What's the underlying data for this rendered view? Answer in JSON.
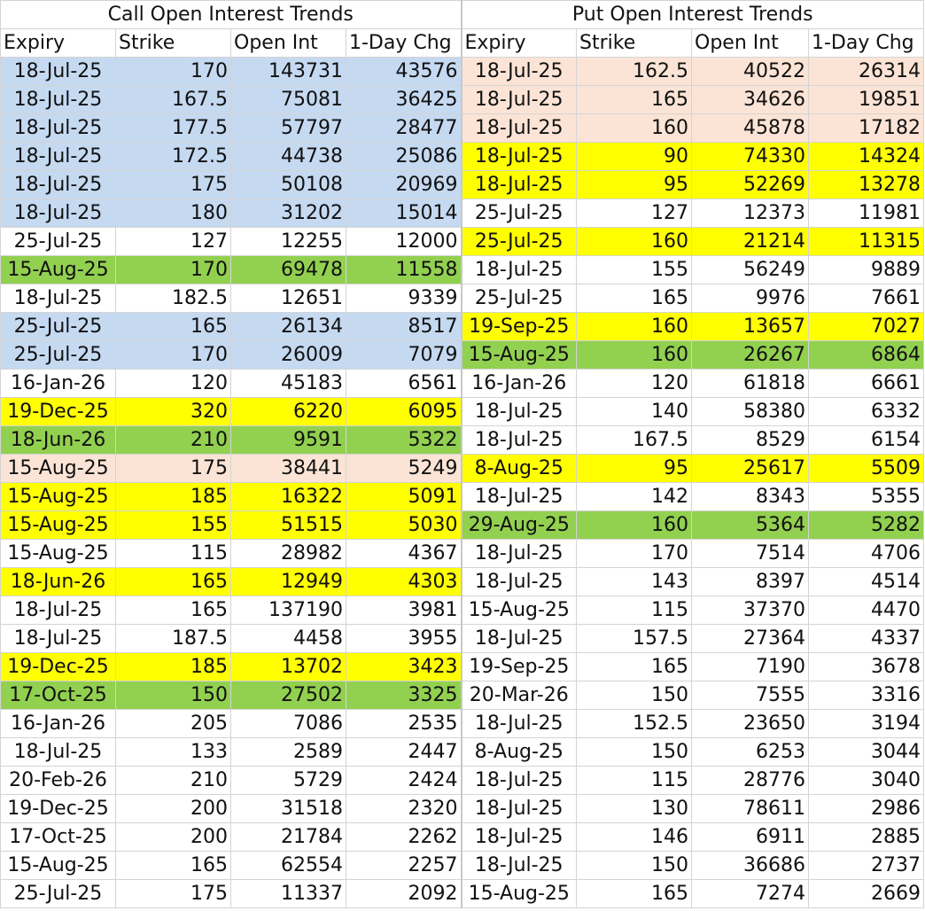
{
  "sections": {
    "call_title": "Call Open Interest Trends",
    "put_title": "Put Open Interest Trends"
  },
  "headers": [
    "Expiry",
    "Strike",
    "Open Int",
    "1-Day Chg"
  ],
  "colors": {
    "blue": "#c5d9f1",
    "green": "#92d050",
    "yellow": "#ffff00",
    "peach": "#fbe4d6",
    "none": "#ffffff"
  },
  "call": [
    {
      "expiry": "18-Jul-25",
      "strike": "170",
      "oi": "143731",
      "chg": "43576",
      "hl": "blue"
    },
    {
      "expiry": "18-Jul-25",
      "strike": "167.5",
      "oi": "75081",
      "chg": "36425",
      "hl": "blue"
    },
    {
      "expiry": "18-Jul-25",
      "strike": "177.5",
      "oi": "57797",
      "chg": "28477",
      "hl": "blue"
    },
    {
      "expiry": "18-Jul-25",
      "strike": "172.5",
      "oi": "44738",
      "chg": "25086",
      "hl": "blue"
    },
    {
      "expiry": "18-Jul-25",
      "strike": "175",
      "oi": "50108",
      "chg": "20969",
      "hl": "blue"
    },
    {
      "expiry": "18-Jul-25",
      "strike": "180",
      "oi": "31202",
      "chg": "15014",
      "hl": "blue"
    },
    {
      "expiry": "25-Jul-25",
      "strike": "127",
      "oi": "12255",
      "chg": "12000",
      "hl": "none"
    },
    {
      "expiry": "15-Aug-25",
      "strike": "170",
      "oi": "69478",
      "chg": "11558",
      "hl": "green"
    },
    {
      "expiry": "18-Jul-25",
      "strike": "182.5",
      "oi": "12651",
      "chg": "9339",
      "hl": "none"
    },
    {
      "expiry": "25-Jul-25",
      "strike": "165",
      "oi": "26134",
      "chg": "8517",
      "hl": "blue"
    },
    {
      "expiry": "25-Jul-25",
      "strike": "170",
      "oi": "26009",
      "chg": "7079",
      "hl": "blue"
    },
    {
      "expiry": "16-Jan-26",
      "strike": "120",
      "oi": "45183",
      "chg": "6561",
      "hl": "none"
    },
    {
      "expiry": "19-Dec-25",
      "strike": "320",
      "oi": "6220",
      "chg": "6095",
      "hl": "yellow"
    },
    {
      "expiry": "18-Jun-26",
      "strike": "210",
      "oi": "9591",
      "chg": "5322",
      "hl": "green"
    },
    {
      "expiry": "15-Aug-25",
      "strike": "175",
      "oi": "38441",
      "chg": "5249",
      "hl": "peach"
    },
    {
      "expiry": "15-Aug-25",
      "strike": "185",
      "oi": "16322",
      "chg": "5091",
      "hl": "yellow"
    },
    {
      "expiry": "15-Aug-25",
      "strike": "155",
      "oi": "51515",
      "chg": "5030",
      "hl": "yellow"
    },
    {
      "expiry": "15-Aug-25",
      "strike": "115",
      "oi": "28982",
      "chg": "4367",
      "hl": "none"
    },
    {
      "expiry": "18-Jun-26",
      "strike": "165",
      "oi": "12949",
      "chg": "4303",
      "hl": "yellow"
    },
    {
      "expiry": "18-Jul-25",
      "strike": "165",
      "oi": "137190",
      "chg": "3981",
      "hl": "none"
    },
    {
      "expiry": "18-Jul-25",
      "strike": "187.5",
      "oi": "4458",
      "chg": "3955",
      "hl": "none"
    },
    {
      "expiry": "19-Dec-25",
      "strike": "185",
      "oi": "13702",
      "chg": "3423",
      "hl": "yellow"
    },
    {
      "expiry": "17-Oct-25",
      "strike": "150",
      "oi": "27502",
      "chg": "3325",
      "hl": "green"
    },
    {
      "expiry": "16-Jan-26",
      "strike": "205",
      "oi": "7086",
      "chg": "2535",
      "hl": "none"
    },
    {
      "expiry": "18-Jul-25",
      "strike": "133",
      "oi": "2589",
      "chg": "2447",
      "hl": "none"
    },
    {
      "expiry": "20-Feb-26",
      "strike": "210",
      "oi": "5729",
      "chg": "2424",
      "hl": "none"
    },
    {
      "expiry": "19-Dec-25",
      "strike": "200",
      "oi": "31518",
      "chg": "2320",
      "hl": "none"
    },
    {
      "expiry": "17-Oct-25",
      "strike": "200",
      "oi": "21784",
      "chg": "2262",
      "hl": "none"
    },
    {
      "expiry": "15-Aug-25",
      "strike": "165",
      "oi": "62554",
      "chg": "2257",
      "hl": "none"
    },
    {
      "expiry": "25-Jul-25",
      "strike": "175",
      "oi": "11337",
      "chg": "2092",
      "hl": "none"
    }
  ],
  "put": [
    {
      "expiry": "18-Jul-25",
      "strike": "162.5",
      "oi": "40522",
      "chg": "26314",
      "hl": "peach"
    },
    {
      "expiry": "18-Jul-25",
      "strike": "165",
      "oi": "34626",
      "chg": "19851",
      "hl": "peach"
    },
    {
      "expiry": "18-Jul-25",
      "strike": "160",
      "oi": "45878",
      "chg": "17182",
      "hl": "peach"
    },
    {
      "expiry": "18-Jul-25",
      "strike": "90",
      "oi": "74330",
      "chg": "14324",
      "hl": "yellow"
    },
    {
      "expiry": "18-Jul-25",
      "strike": "95",
      "oi": "52269",
      "chg": "13278",
      "hl": "yellow"
    },
    {
      "expiry": "25-Jul-25",
      "strike": "127",
      "oi": "12373",
      "chg": "11981",
      "hl": "none"
    },
    {
      "expiry": "25-Jul-25",
      "strike": "160",
      "oi": "21214",
      "chg": "11315",
      "hl": "yellow"
    },
    {
      "expiry": "18-Jul-25",
      "strike": "155",
      "oi": "56249",
      "chg": "9889",
      "hl": "none"
    },
    {
      "expiry": "25-Jul-25",
      "strike": "165",
      "oi": "9976",
      "chg": "7661",
      "hl": "none"
    },
    {
      "expiry": "19-Sep-25",
      "strike": "160",
      "oi": "13657",
      "chg": "7027",
      "hl": "yellow"
    },
    {
      "expiry": "15-Aug-25",
      "strike": "160",
      "oi": "26267",
      "chg": "6864",
      "hl": "green"
    },
    {
      "expiry": "16-Jan-26",
      "strike": "120",
      "oi": "61818",
      "chg": "6661",
      "hl": "none"
    },
    {
      "expiry": "18-Jul-25",
      "strike": "140",
      "oi": "58380",
      "chg": "6332",
      "hl": "none"
    },
    {
      "expiry": "18-Jul-25",
      "strike": "167.5",
      "oi": "8529",
      "chg": "6154",
      "hl": "none"
    },
    {
      "expiry": "8-Aug-25",
      "strike": "95",
      "oi": "25617",
      "chg": "5509",
      "hl": "yellow"
    },
    {
      "expiry": "18-Jul-25",
      "strike": "142",
      "oi": "8343",
      "chg": "5355",
      "hl": "none"
    },
    {
      "expiry": "29-Aug-25",
      "strike": "160",
      "oi": "5364",
      "chg": "5282",
      "hl": "green"
    },
    {
      "expiry": "18-Jul-25",
      "strike": "170",
      "oi": "7514",
      "chg": "4706",
      "hl": "none"
    },
    {
      "expiry": "18-Jul-25",
      "strike": "143",
      "oi": "8397",
      "chg": "4514",
      "hl": "none"
    },
    {
      "expiry": "15-Aug-25",
      "strike": "115",
      "oi": "37370",
      "chg": "4470",
      "hl": "none"
    },
    {
      "expiry": "18-Jul-25",
      "strike": "157.5",
      "oi": "27364",
      "chg": "4337",
      "hl": "none"
    },
    {
      "expiry": "19-Sep-25",
      "strike": "165",
      "oi": "7190",
      "chg": "3678",
      "hl": "none"
    },
    {
      "expiry": "20-Mar-26",
      "strike": "150",
      "oi": "7555",
      "chg": "3316",
      "hl": "none"
    },
    {
      "expiry": "18-Jul-25",
      "strike": "152.5",
      "oi": "23650",
      "chg": "3194",
      "hl": "none"
    },
    {
      "expiry": "8-Aug-25",
      "strike": "150",
      "oi": "6253",
      "chg": "3044",
      "hl": "none"
    },
    {
      "expiry": "18-Jul-25",
      "strike": "115",
      "oi": "28776",
      "chg": "3040",
      "hl": "none"
    },
    {
      "expiry": "18-Jul-25",
      "strike": "130",
      "oi": "78611",
      "chg": "2986",
      "hl": "none"
    },
    {
      "expiry": "18-Jul-25",
      "strike": "146",
      "oi": "6911",
      "chg": "2885",
      "hl": "none"
    },
    {
      "expiry": "18-Jul-25",
      "strike": "150",
      "oi": "36686",
      "chg": "2737",
      "hl": "none"
    },
    {
      "expiry": "15-Aug-25",
      "strike": "165",
      "oi": "7274",
      "chg": "2669",
      "hl": "none"
    }
  ]
}
